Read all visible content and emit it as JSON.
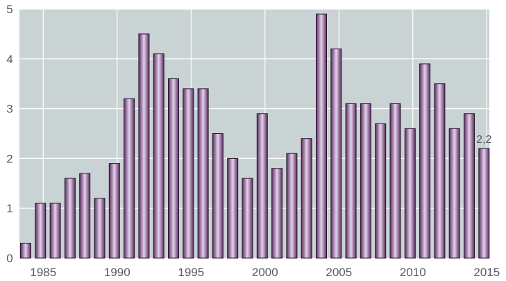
{
  "colors": {
    "plot_background": "#c9d3d4",
    "bar_dark": "#5a2d63",
    "bar_light": "#e6d2ea",
    "grid": "#ffffff",
    "text": "#555a5e"
  },
  "chart_data": {
    "type": "bar",
    "title": "",
    "xlabel": "",
    "ylabel": "",
    "x": [
      1984,
      1985,
      1986,
      1987,
      1988,
      1989,
      1990,
      1991,
      1992,
      1993,
      1994,
      1995,
      1996,
      1997,
      1998,
      1999,
      2000,
      2001,
      2002,
      2003,
      2004,
      2005,
      2006,
      2007,
      2008,
      2009,
      2010,
      2011,
      2012,
      2013,
      2014,
      2015
    ],
    "values": [
      0.3,
      1.1,
      1.1,
      1.6,
      1.7,
      1.2,
      1.9,
      3.2,
      4.5,
      4.1,
      3.6,
      3.4,
      3.4,
      2.5,
      2.0,
      1.6,
      2.9,
      1.8,
      2.1,
      2.4,
      4.9,
      4.2,
      3.1,
      3.1,
      2.7,
      3.1,
      2.6,
      3.9,
      3.5,
      2.6,
      2.9,
      2.2
    ],
    "ylim": [
      0,
      5
    ],
    "yticks": [
      "0",
      "1",
      "2",
      "3",
      "4",
      "5"
    ],
    "xticks": [
      "1985",
      "1990",
      "1995",
      "2000",
      "2005",
      "2010",
      "2015"
    ],
    "grid": true,
    "annotations": [
      {
        "year": 2015,
        "text": "2,2"
      }
    ]
  }
}
